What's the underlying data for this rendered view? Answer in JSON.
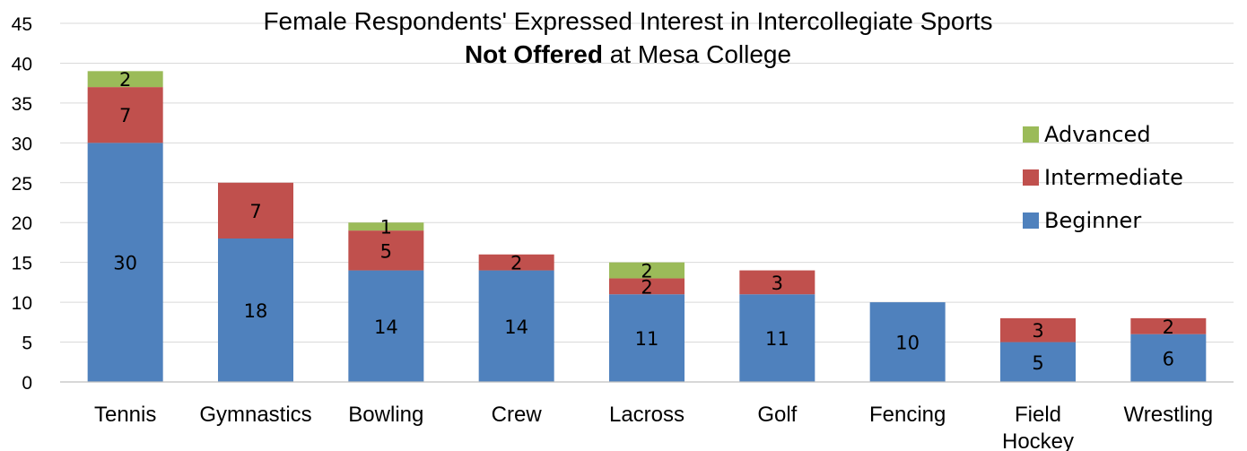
{
  "chart_data": {
    "type": "bar",
    "stacked": true,
    "title": "Female Respondents' Expressed Interest in Intercollegiate Sports",
    "subtitle_bold": "Not Offered",
    "subtitle_rest": " at Mesa College",
    "categories": [
      "Tennis",
      "Gymnastics",
      "Bowling",
      "Crew",
      "Lacross",
      "Golf",
      "Fencing",
      "Field Hockey",
      "Wrestling"
    ],
    "category_lines": [
      [
        "Tennis"
      ],
      [
        "Gymnastics"
      ],
      [
        "Bowling"
      ],
      [
        "Crew"
      ],
      [
        "Lacross"
      ],
      [
        "Golf"
      ],
      [
        "Fencing"
      ],
      [
        "Field",
        "Hockey"
      ],
      [
        "Wrestling"
      ]
    ],
    "series": [
      {
        "name": "Beginner",
        "color": "#4f81bd",
        "values": [
          30,
          18,
          14,
          14,
          11,
          11,
          10,
          5,
          6
        ]
      },
      {
        "name": "Intermediate",
        "color": "#c0504d",
        "values": [
          7,
          7,
          5,
          2,
          2,
          3,
          0,
          3,
          2
        ]
      },
      {
        "name": "Advanced",
        "color": "#9bbb59",
        "values": [
          2,
          0,
          1,
          0,
          2,
          0,
          0,
          0,
          0
        ]
      }
    ],
    "legend_order": [
      "Advanced",
      "Intermediate",
      "Beginner"
    ],
    "ylim": [
      0,
      45
    ],
    "yticks": [
      0,
      5,
      10,
      15,
      20,
      25,
      30,
      35,
      40,
      45
    ],
    "grid": true,
    "legend_position": "right",
    "xlabel": "",
    "ylabel": ""
  }
}
